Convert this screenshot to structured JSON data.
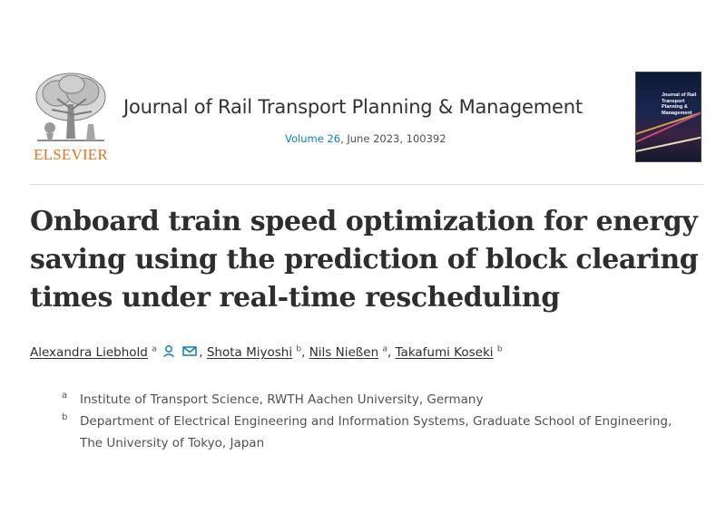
{
  "journal": {
    "publisher": "ELSEVIER",
    "title": "Journal of Rail Transport Planning & Management",
    "volume_label": "Volume 26",
    "issue_details": ", June 2023, 100392",
    "cover_text": "Journal of Rail Transport Planning & Management"
  },
  "article": {
    "title": "Onboard train speed optimization for energy saving using the prediction of block clearing times under real-time rescheduling"
  },
  "authors": [
    {
      "name": "Alexandra Liebhold",
      "sup": "a",
      "separator": ", "
    },
    {
      "name": "Shota Miyoshi",
      "sup": "b",
      "separator": ", "
    },
    {
      "name": "Nils Nießen",
      "sup": "a",
      "separator": ", "
    },
    {
      "name": "Takafumi Koseki",
      "sup": "b",
      "separator": ""
    }
  ],
  "affiliations": [
    {
      "label": "a",
      "text": "Institute of Transport Science, RWTH Aachen University, Germany"
    },
    {
      "label": "b",
      "text": "Department of Electrical Engineering and Information Systems, Graduate School of Engineering, The University of Tokyo, Japan"
    }
  ],
  "colors": {
    "publisher_orange": "#e9711c",
    "link_blue": "#0c7dbb",
    "icon_teal": "#0c7dbb"
  }
}
